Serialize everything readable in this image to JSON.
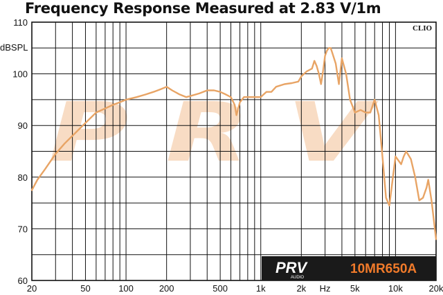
{
  "header": {
    "title": "Frequency Response Measured at 2.83 V/1m"
  },
  "branding": {
    "software": "CLIO",
    "logo_text": "PRV",
    "logo_sub": "AUDIO",
    "watermark": "PRV",
    "model": "10MR650A"
  },
  "colors": {
    "curve": "#e8a465",
    "grid": "#111111",
    "watermark": "#f8dcc4",
    "model_box": "#1a1a1a",
    "model_text": "#f07a2a"
  },
  "chart_data": {
    "type": "line",
    "title": "Frequency Response Measured at 2.83 V/1m",
    "xlabel": "Hz",
    "ylabel": "dBSPL",
    "xscale": "log",
    "xlim": [
      20,
      20000
    ],
    "ylim": [
      60,
      110
    ],
    "grid": true,
    "x_tick_labels": [
      "20",
      "50",
      "100",
      "200",
      "500",
      "1k",
      "2k",
      "Hz",
      "5k",
      "10k",
      "20k"
    ],
    "x_tick_values": [
      20,
      50,
      100,
      200,
      500,
      1000,
      2000,
      3000,
      5000,
      10000,
      20000
    ],
    "y_tick_labels": [
      "110",
      "100",
      "90",
      "80",
      "70",
      "60"
    ],
    "y_tick_values": [
      110,
      100,
      90,
      80,
      70,
      60
    ],
    "series": [
      {
        "name": "10MR650A",
        "x": [
          20,
          22,
          25,
          30,
          35,
          40,
          50,
          60,
          70,
          80,
          90,
          100,
          120,
          140,
          160,
          180,
          200,
          220,
          250,
          280,
          300,
          350,
          400,
          450,
          500,
          550,
          600,
          640,
          660,
          700,
          750,
          800,
          900,
          1000,
          1100,
          1200,
          1300,
          1500,
          1700,
          1900,
          2000,
          2200,
          2400,
          2500,
          2600,
          2700,
          2800,
          2900,
          3000,
          3100,
          3200,
          3300,
          3400,
          3600,
          3800,
          4000,
          4300,
          4600,
          5000,
          5500,
          6000,
          6500,
          7000,
          7500,
          8000,
          8500,
          9000,
          10000,
          11000,
          11500,
          12000,
          13000,
          14000,
          15000,
          16000,
          17000,
          17500,
          18500,
          20000
        ],
        "values": [
          77.5,
          79.5,
          81.5,
          84.5,
          86.5,
          88,
          90.5,
          92.5,
          93.3,
          94,
          94.5,
          95,
          95.5,
          96,
          96.5,
          97,
          97.5,
          96.8,
          96,
          95.5,
          95.7,
          96.2,
          96.8,
          96.8,
          96.5,
          96,
          95.5,
          94,
          92,
          94.5,
          95.5,
          95.5,
          95.5,
          95.5,
          96.5,
          96.5,
          97.5,
          98,
          98.2,
          98.5,
          99.5,
          100.5,
          101,
          102.5,
          101.5,
          100,
          98,
          100.5,
          103.5,
          104.5,
          105,
          105,
          104,
          102,
          98,
          103,
          100,
          95,
          92.5,
          93,
          92.5,
          92.5,
          95,
          92,
          84,
          76,
          74.5,
          84,
          82.5,
          84,
          85,
          83.5,
          80,
          75.5,
          76,
          78,
          79.5,
          75.5,
          68
        ]
      }
    ]
  }
}
